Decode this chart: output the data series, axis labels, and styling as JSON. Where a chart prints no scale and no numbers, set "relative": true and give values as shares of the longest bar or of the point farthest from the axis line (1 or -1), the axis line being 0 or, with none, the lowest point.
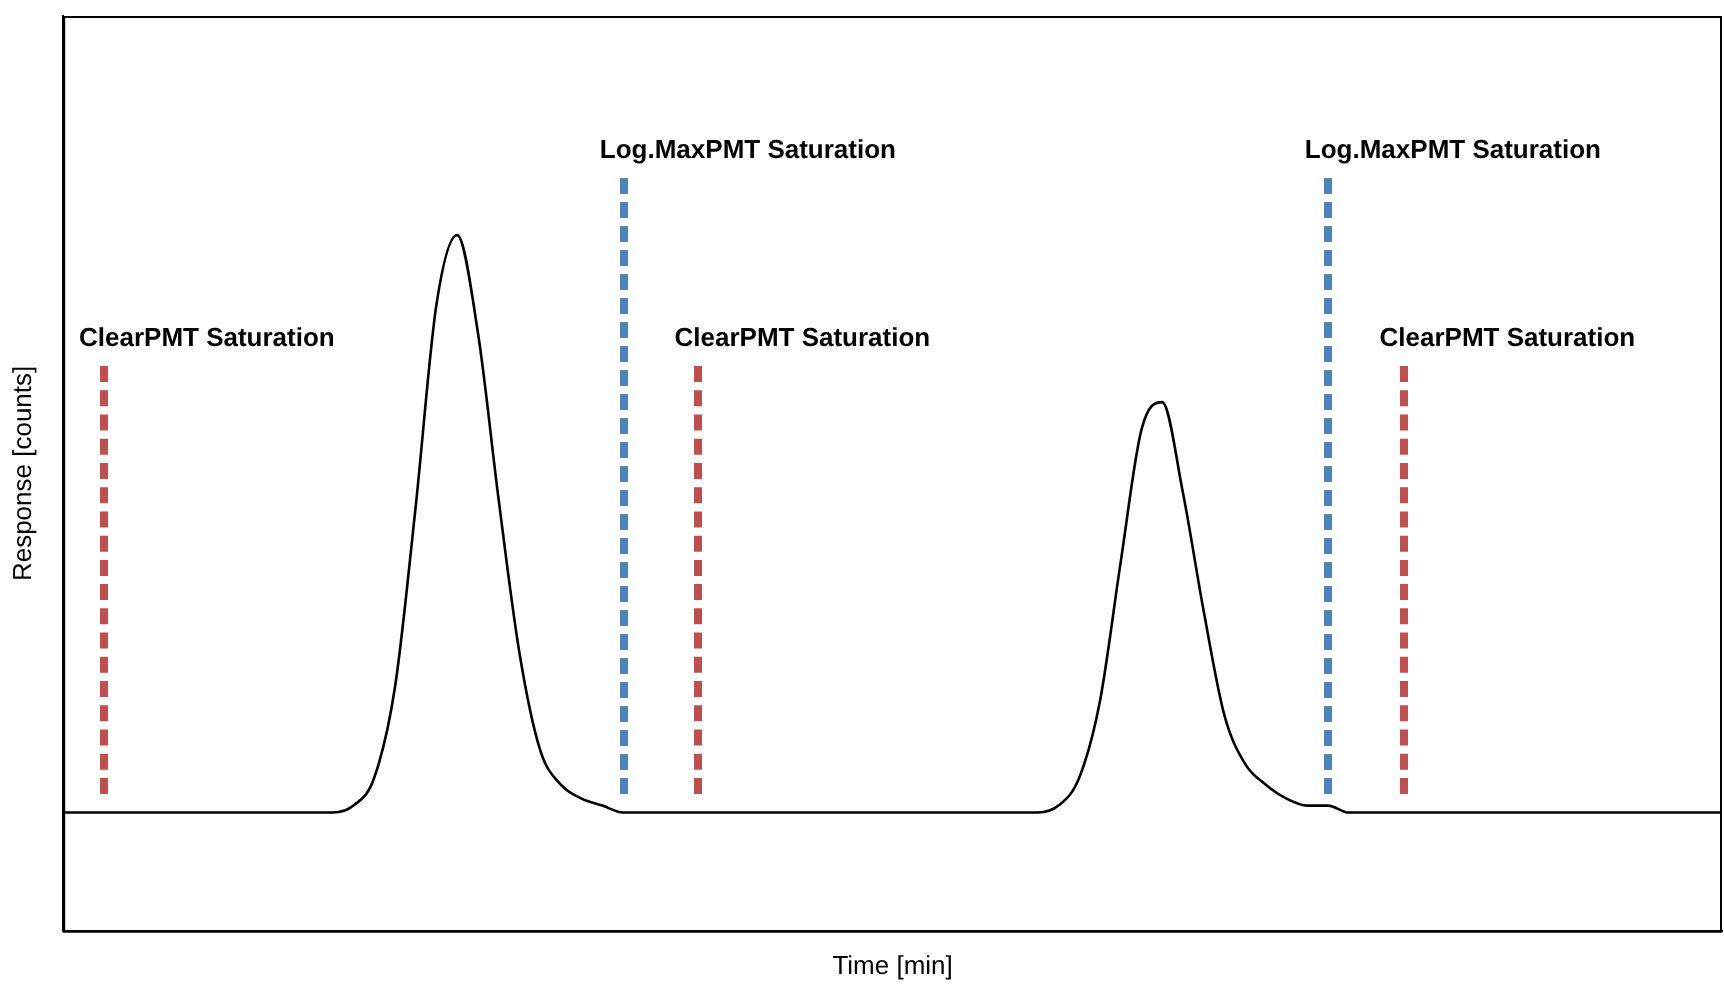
{
  "chart_data": {
    "type": "line",
    "relative": true,
    "xlabel": "Time [min]",
    "ylabel": "Response [counts]",
    "legend": false,
    "grid": false,
    "marker": "none",
    "line_style": "solid",
    "categories": [
      null,
      null,
      null,
      null,
      null,
      null,
      null,
      null,
      null,
      null,
      null,
      null,
      null,
      null,
      null,
      null,
      null,
      null,
      null,
      null,
      null,
      null,
      null,
      null,
      null,
      null,
      null,
      null,
      null,
      null,
      null,
      null,
      null,
      null,
      null,
      null,
      null,
      null,
      null,
      null,
      null,
      null,
      null,
      null,
      null,
      null,
      null,
      null,
      null,
      null,
      null,
      null,
      null,
      null,
      null,
      null,
      null,
      null,
      null,
      null,
      null,
      null,
      null,
      null,
      null,
      null,
      null,
      null,
      null,
      null,
      null,
      null,
      null,
      null,
      null,
      null,
      null,
      null,
      null,
      null,
      null
    ],
    "series": [
      {
        "color": "#000000",
        "values": [
          0.17,
          0.17,
          0.17,
          0.17,
          0.17,
          0.17,
          0.17,
          0.17,
          0.17,
          0.17,
          0.17,
          0.17,
          0.17,
          0.17,
          0.18,
          0.22,
          0.35,
          0.61,
          0.9,
          1,
          0.86,
          0.62,
          0.4,
          0.26,
          0.21,
          0.19,
          0.18,
          0.17,
          0.17,
          0.17,
          0.17,
          0.17,
          0.17,
          0.17,
          0.17,
          0.17,
          0.17,
          0.17,
          0.17,
          0.17,
          0.17,
          0.17,
          0.17,
          0.17,
          0.17,
          0.17,
          0.17,
          0.17,
          0.18,
          0.22,
          0.33,
          0.53,
          0.72,
          0.76,
          0.63,
          0.46,
          0.31,
          0.24,
          0.21,
          0.19,
          0.18,
          0.18,
          0.17,
          0.17,
          0.17,
          0.17,
          0.17,
          0.17,
          0.17,
          0.17,
          0.17,
          0.17,
          0.17,
          0.17,
          0.17,
          0.17,
          0.17,
          0.17,
          0.17,
          0.17,
          0.17
        ]
      }
    ],
    "annotations": [
      "ClearPMT Saturation",
      "Log.MaxPMT Saturation",
      "ClearPMT Saturation",
      "Log.MaxPMT Saturation",
      "ClearPMT Saturation"
    ]
  }
}
